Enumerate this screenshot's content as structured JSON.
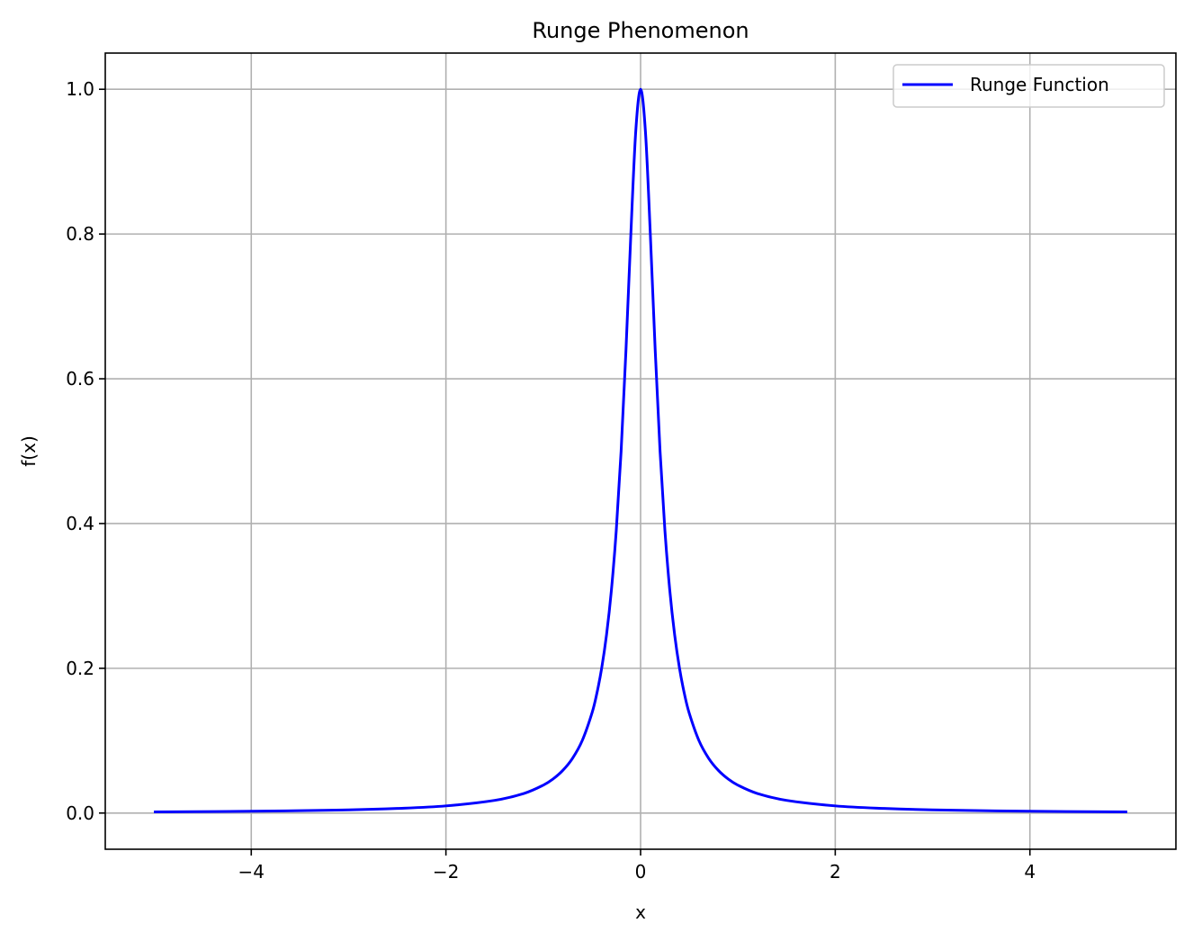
{
  "chart_data": {
    "type": "line",
    "title": "Runge Phenomenon",
    "xlabel": "x",
    "ylabel": "f(x)",
    "xlim": [
      -5.5,
      5.5
    ],
    "ylim": [
      -0.05,
      1.05
    ],
    "x_ticks": [
      -4,
      -2,
      0,
      2,
      4
    ],
    "x_tick_labels": [
      "−4",
      "−2",
      "0",
      "2",
      "4"
    ],
    "y_ticks": [
      0.0,
      0.2,
      0.4,
      0.6,
      0.8,
      1.0
    ],
    "y_tick_labels": [
      "0.0",
      "0.2",
      "0.4",
      "0.6",
      "0.8",
      "1.0"
    ],
    "grid": true,
    "legend_position": "upper-right",
    "series": [
      {
        "name": "Runge Function",
        "color": "#0000ff",
        "x": [
          -5.0,
          -4.0,
          -3.0,
          -2.5,
          -2.0,
          -1.5,
          -1.2,
          -1.0,
          -0.9,
          -0.8,
          -0.7,
          -0.6,
          -0.5,
          -0.45,
          -0.4,
          -0.35,
          -0.3,
          -0.25,
          -0.2,
          -0.15,
          -0.1,
          -0.05,
          0.0,
          0.05,
          0.1,
          0.15,
          0.2,
          0.25,
          0.3,
          0.35,
          0.4,
          0.45,
          0.5,
          0.6,
          0.7,
          0.8,
          0.9,
          1.0,
          1.2,
          1.5,
          2.0,
          2.5,
          3.0,
          4.0,
          5.0
        ],
        "y": [
          0.0016,
          0.0025,
          0.0044,
          0.0064,
          0.0099,
          0.0175,
          0.027,
          0.0385,
          0.047,
          0.0588,
          0.0755,
          0.1,
          0.1379,
          0.1649,
          0.2,
          0.2462,
          0.3077,
          0.3902,
          0.5,
          0.64,
          0.8,
          0.9412,
          1.0,
          0.9412,
          0.8,
          0.64,
          0.5,
          0.3902,
          0.3077,
          0.2462,
          0.2,
          0.1649,
          0.1379,
          0.1,
          0.0755,
          0.0588,
          0.047,
          0.0385,
          0.027,
          0.0175,
          0.0099,
          0.0064,
          0.0044,
          0.0025,
          0.0016
        ]
      }
    ]
  }
}
